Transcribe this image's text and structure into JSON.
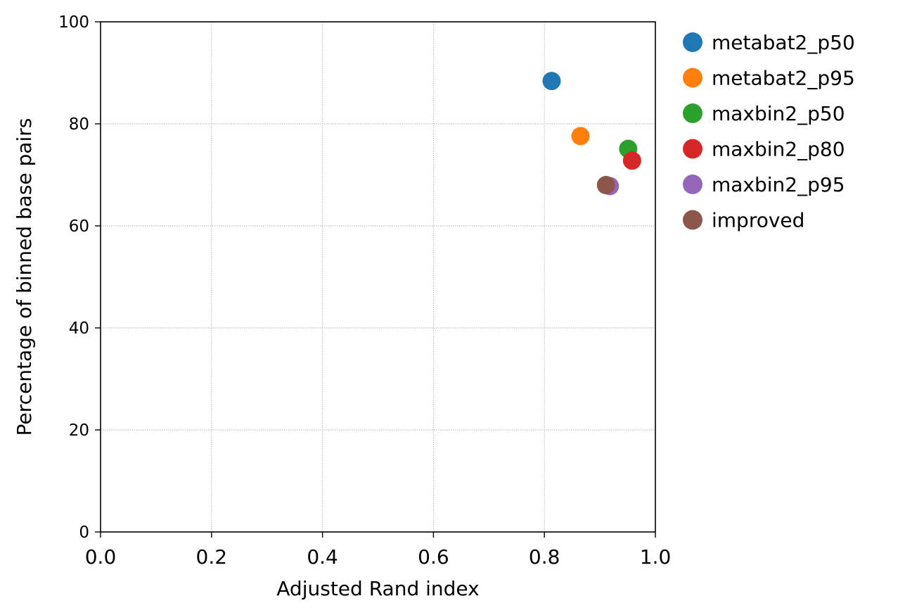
{
  "chart_data": {
    "type": "scatter",
    "title": "",
    "xlabel": "Adjusted Rand index",
    "ylabel": "Percentage of binned base pairs",
    "xlim": [
      0.0,
      1.0
    ],
    "ylim": [
      0,
      100
    ],
    "x_ticks": [
      "0.0",
      "0.2",
      "0.4",
      "0.6",
      "0.8",
      "1.0"
    ],
    "x_tick_values": [
      0.0,
      0.2,
      0.4,
      0.6,
      0.8,
      1.0
    ],
    "y_ticks": [
      "0",
      "20",
      "40",
      "60",
      "80",
      "100"
    ],
    "y_tick_values": [
      0,
      20,
      40,
      60,
      80,
      100
    ],
    "grid": true,
    "legend_placement": "outside-right-top",
    "series": [
      {
        "name": "metabat2_p50",
        "color": "#1f77b4",
        "x": [
          0.813
        ],
        "y": [
          88.4
        ]
      },
      {
        "name": "metabat2_p95",
        "color": "#ff7f0e",
        "x": [
          0.865
        ],
        "y": [
          77.6
        ]
      },
      {
        "name": "maxbin2_p50",
        "color": "#2ca02c",
        "x": [
          0.951
        ],
        "y": [
          75.1
        ]
      },
      {
        "name": "maxbin2_p80",
        "color": "#d62728",
        "x": [
          0.958
        ],
        "y": [
          72.8
        ]
      },
      {
        "name": "maxbin2_p95",
        "color": "#9467bd",
        "x": [
          0.918
        ],
        "y": [
          67.8
        ]
      },
      {
        "name": "improved",
        "color": "#8c564b",
        "x": [
          0.911
        ],
        "y": [
          68.0
        ]
      }
    ]
  }
}
